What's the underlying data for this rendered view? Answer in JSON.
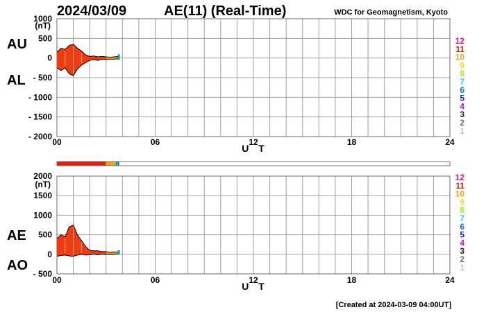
{
  "header": {
    "date": "2024/03/09",
    "title": "AE(11) (Real-Time)",
    "source": "WDC for Geomagnetism, Kyoto"
  },
  "footer": {
    "created": "[Created at 2024-03-09 04:00UT]"
  },
  "levels": [
    {
      "label": "12",
      "color": "#e8106e"
    },
    {
      "label": "11",
      "color": "#e82010"
    },
    {
      "label": "10",
      "color": "#f0a010"
    },
    {
      "label": "9",
      "color": "#f0e020"
    },
    {
      "label": "8",
      "color": "#a0e820"
    },
    {
      "label": "7",
      "color": "#20d8d8"
    },
    {
      "label": "6",
      "color": "#1070e0"
    },
    {
      "label": "5",
      "color": "#2020b0"
    },
    {
      "label": "4",
      "color": "#c010d0"
    },
    {
      "label": "3",
      "color": "#202020"
    },
    {
      "label": "2",
      "color": "#707070"
    },
    {
      "label": "1",
      "color": "#c0c0c0"
    }
  ],
  "colors": {
    "fill": "#f03a10",
    "outline": "#000000",
    "tail_orange": "#f0a020",
    "tail_teal": "#10a090",
    "grid": "#a0a0a0"
  },
  "level_bar": [
    {
      "from": 0.0,
      "to": 3.0,
      "color": "#e82010"
    },
    {
      "from": 3.0,
      "to": 3.6,
      "color": "#f0a010"
    },
    {
      "from": 3.6,
      "to": 3.72,
      "color": "#10a090"
    },
    {
      "from": 3.72,
      "to": 3.8,
      "color": "#1070e0"
    }
  ],
  "chart_data": [
    {
      "type": "area",
      "side_labels": {
        "upper": "AU",
        "lower": "AL"
      },
      "unit": "(nT)",
      "ylim": [
        -2000,
        1000
      ],
      "yticks": [
        "1000",
        "500",
        "0",
        "- 500",
        "- 1000",
        "- 1500",
        "- 2000"
      ],
      "xlim": [
        0,
        24
      ],
      "xticks": [
        "00",
        "06",
        "12",
        "18",
        "24"
      ],
      "xlabel": "U T",
      "x": [
        0.0,
        0.25,
        0.5,
        0.75,
        1.0,
        1.25,
        1.5,
        1.75,
        2.0,
        2.25,
        2.5,
        2.75,
        3.0,
        3.25,
        3.5,
        3.75,
        3.8
      ],
      "series": [
        {
          "name": "AU",
          "values": [
            150,
            250,
            220,
            320,
            350,
            250,
            180,
            80,
            40,
            50,
            30,
            40,
            30,
            20,
            30,
            40,
            60
          ]
        },
        {
          "name": "AL",
          "values": [
            -250,
            -320,
            -250,
            -400,
            -450,
            -280,
            -180,
            -120,
            -60,
            -40,
            -60,
            -30,
            -40,
            -30,
            -30,
            -20,
            -10
          ]
        }
      ]
    },
    {
      "type": "area",
      "side_labels": {
        "upper": "AE",
        "lower": "AO"
      },
      "unit": "(nT)",
      "ylim": [
        -500,
        2000
      ],
      "yticks": [
        "2000",
        "1500",
        "1000",
        "500",
        "0",
        "- 500"
      ],
      "xlim": [
        0,
        24
      ],
      "xticks": [
        "00",
        "06",
        "12",
        "18",
        "24"
      ],
      "xlabel": "U T",
      "x": [
        0.0,
        0.25,
        0.5,
        0.75,
        1.0,
        1.25,
        1.5,
        1.75,
        2.0,
        2.25,
        2.5,
        2.75,
        3.0,
        3.25,
        3.5,
        3.75,
        3.8
      ],
      "series": [
        {
          "name": "AE",
          "values": [
            400,
            500,
            450,
            700,
            750,
            500,
            350,
            200,
            100,
            90,
            90,
            70,
            70,
            50,
            60,
            60,
            70
          ]
        },
        {
          "name": "AO",
          "values": [
            -50,
            -30,
            -20,
            -40,
            -50,
            -20,
            0,
            -20,
            -10,
            5,
            -15,
            5,
            -5,
            -5,
            0,
            10,
            25
          ]
        }
      ]
    }
  ]
}
